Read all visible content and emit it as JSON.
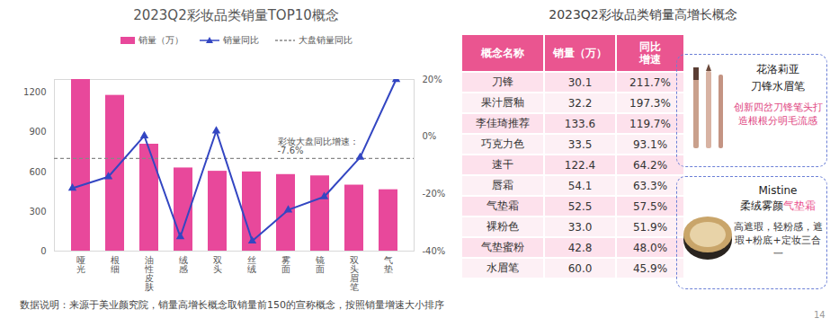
{
  "chart_data": {
    "type": "bar",
    "title": "2023Q2彩妆品类销量TOP10概念",
    "categories": [
      "哑光",
      "根细",
      "油性皮肤",
      "绒感",
      "双头",
      "丝绒",
      "雾面",
      "镜面",
      "双头眉笔",
      "气垫"
    ],
    "series": [
      {
        "name": "销量（万）",
        "type": "bar",
        "color": "#e8489b",
        "values": [
          1300,
          1180,
          810,
          630,
          605,
          600,
          580,
          570,
          500,
          465
        ]
      },
      {
        "name": "销量同比",
        "type": "line",
        "axis": "y2",
        "color": "#3346c2",
        "marker": "triangle",
        "values": [
          -18,
          -14,
          0.3,
          -35,
          2,
          -36.5,
          -25.6,
          -21,
          -7.2,
          20
        ]
      }
    ],
    "reference_line": {
      "name": "大盘销量同比",
      "axis": "y2",
      "value": -7.6,
      "value_label": "-7.6%",
      "label": "彩妆大盘同比增速：",
      "color": "#888888",
      "line_style": "dashed"
    },
    "ylim": [
      0,
      1300
    ],
    "yticks": [
      0,
      300,
      600,
      900,
      1200
    ],
    "y2lim": [
      -40,
      20
    ],
    "y2ticks": [
      {
        "value": -40,
        "label": "-40%"
      },
      {
        "value": -20,
        "label": "-20%"
      },
      {
        "value": 0,
        "label": "0%"
      },
      {
        "value": 20,
        "label": "20%"
      }
    ],
    "legend": "top",
    "grid": false
  },
  "table": {
    "title": "2023Q2彩妆品类销量高增长概念",
    "header": [
      "概念名称",
      "销量（万）",
      "同比增速"
    ],
    "rows": [
      [
        "刀锋",
        "30.1",
        "211.7%"
      ],
      [
        "果汁唇釉",
        "32.2",
        "197.3%"
      ],
      [
        "李佳琦推荐",
        "133.6",
        "119.7%"
      ],
      [
        "巧克力色",
        "33.5",
        "93.1%"
      ],
      [
        "速干",
        "122.4",
        "64.2%"
      ],
      [
        "唇霜",
        "54.1",
        "63.3%"
      ],
      [
        "气垫霜",
        "52.5",
        "57.5%"
      ],
      [
        "裸粉色",
        "33.0",
        "51.9%"
      ],
      [
        "气垫蜜粉",
        "42.8",
        "48.0%"
      ],
      [
        "水眉笔",
        "60.0",
        "45.9%"
      ]
    ]
  },
  "callouts": [
    {
      "brand": "花洛莉亚",
      "product": "刀锋水眉笔",
      "description": "创新四岔刀锋笔头打造根根分明毛流感"
    },
    {
      "brand": "Mistine",
      "product": "柔绒雾颜气垫霜",
      "highlight": "气垫霜",
      "description": "高遮瑕，轻粉感，遮瑕+粉底+定妆三合一"
    }
  ],
  "note": "数据说明：来源于美业颜究院，销量高增长概念取销量前150的宣称概念，按照销量增速大小排序",
  "page_number": 14
}
